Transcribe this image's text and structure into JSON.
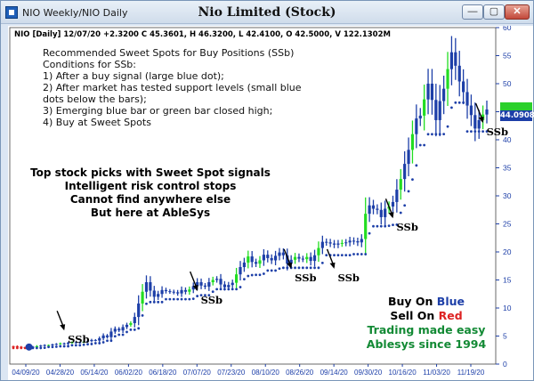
{
  "window": {
    "title": "NIO Weekly/NIO Daily",
    "chart_title": "Nio Limited (Stock)",
    "minimize_label": "—",
    "maximize_label": "▢",
    "close_label": "✕"
  },
  "info_line": "NIO [Daily] 12/07/20 +2.3200 C 45.3601, H 46.3200, L 42.4100, O 42.5000, V 122.1302M",
  "recommendation": {
    "lines": [
      "Recommended Sweet Spots for Buy Positions (SSb)",
      "Conditions for SSb:",
      "1) After a buy signal (large blue dot);",
      "2) After market has tested support levels (small blue",
      "    dots below the bars);",
      "3) Emerging blue bar or green bar closed high;",
      "4) Buy at Sweet Spots"
    ]
  },
  "promo": {
    "lines": [
      "Top stock picks with Sweet Spot signals",
      "Intelligent risk control stops",
      "Cannot find anywhere else",
      "But here at AbleSys"
    ]
  },
  "promo2": {
    "buy_prefix": "Buy On ",
    "buy_word": "Blue",
    "sell_prefix": "Sell On ",
    "sell_word": "Red",
    "line3": "Trading made easy",
    "line4": "Ablesys since 1994"
  },
  "last_price_label": "44.0908",
  "colors": {
    "blue": "#1d3fa8",
    "green": "#22dd22",
    "red": "#dd2222",
    "promo_green": "#138a35"
  },
  "chart_data": {
    "type": "candlestick",
    "x_tick_labels": [
      "04/09/20",
      "04/28/20",
      "05/14/20",
      "06/02/20",
      "06/18/20",
      "07/07/20",
      "07/23/20",
      "08/10/20",
      "08/26/20",
      "09/14/20",
      "09/30/20",
      "10/16/20",
      "11/03/20",
      "11/19/20"
    ],
    "y_ticks": [
      0,
      5,
      10,
      15,
      20,
      25,
      30,
      35,
      40,
      45,
      50,
      55,
      60
    ],
    "ylim": [
      0,
      60
    ],
    "annotations": [
      {
        "label": "SSb",
        "x_index": 13,
        "y": 6
      },
      {
        "label": "SSb",
        "x_index": 47,
        "y": 13
      },
      {
        "label": "SSb",
        "x_index": 71,
        "y": 17
      },
      {
        "label": "SSb",
        "x_index": 82,
        "y": 17
      },
      {
        "label": "SSb",
        "x_index": 97,
        "y": 26
      },
      {
        "label": "SSb",
        "x_index": 120,
        "y": 43
      }
    ],
    "closes": [
      3.2,
      3.1,
      3.0,
      3.0,
      3.1,
      3.0,
      3.2,
      3.3,
      3.4,
      3.4,
      3.5,
      3.6,
      3.7,
      3.6,
      3.8,
      3.9,
      3.8,
      3.9,
      4.0,
      4.1,
      4.3,
      4.2,
      4.6,
      5.1,
      4.8,
      5.8,
      6.3,
      6.0,
      6.6,
      7.0,
      7.3,
      8.4,
      10.8,
      12.9,
      14.6,
      13.1,
      12.0,
      12.5,
      13.2,
      13.0,
      12.9,
      12.8,
      12.6,
      13.2,
      12.9,
      13.3,
      13.9,
      14.6,
      14.0,
      13.8,
      14.6,
      15.0,
      15.2,
      14.2,
      13.7,
      14.1,
      14.5,
      16.0,
      17.3,
      18.1,
      19.2,
      18.2,
      17.9,
      18.5,
      19.5,
      18.9,
      18.5,
      19.3,
      19.9,
      19.4,
      17.9,
      18.6,
      19.1,
      18.8,
      18.7,
      19.1,
      18.4,
      19.4,
      20.7,
      21.8,
      21.7,
      21.5,
      21.3,
      21.5,
      21.6,
      21.7,
      22.0,
      21.9,
      21.7,
      22.3,
      26.8,
      28.3,
      27.7,
      27.5,
      26.2,
      27.7,
      28.1,
      28.9,
      31.1,
      33.0,
      35.7,
      38.2,
      41.0,
      43.8,
      44.3,
      47.2,
      50.0,
      47.1,
      43.5,
      46.9,
      49.1,
      52.6,
      55.6,
      53.2,
      50.4,
      48.5,
      46.1,
      44.4,
      42.0,
      43.5,
      44.5,
      45.4
    ]
  }
}
